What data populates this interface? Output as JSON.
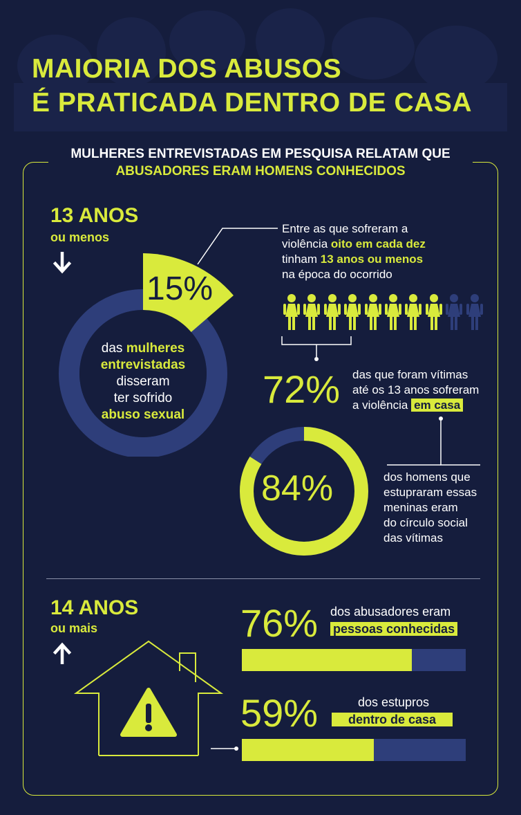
{
  "title": {
    "line1": "MAIORIA DOS ABUSOS",
    "line2": "É PRATICADA DENTRO DE CASA"
  },
  "subtitle": {
    "line1": "MULHERES ENTREVISTADAS EM PESQUISA RELATAM QUE",
    "line2": "ABUSADORES ERAM HOMENS CONHECIDOS"
  },
  "colors": {
    "background": "#151d3d",
    "accent": "#d9ea3c",
    "muted": "#2e3e7a",
    "text": "#ffffff"
  },
  "section_under_13": {
    "age_big": "13 ANOS",
    "age_small": "ou menos",
    "arrow_icon": "arrow-down-icon",
    "donut": {
      "value_label": "15%",
      "value": 15,
      "text_part1": "das",
      "text_bold1": "mulheres",
      "text_bold2": "entrevistadas",
      "text_line3": "disseram",
      "text_line4": "ter sofrido",
      "text_bold3": "abuso sexual"
    },
    "callout": {
      "line1": "Entre as que sofreram a",
      "line2_pre": "violência ",
      "line2_bold": "oito em cada dez",
      "line3_pre": "tinham ",
      "line3_bold": "13 anos ou menos",
      "line4": "na época do ocorrido"
    },
    "people_highlighted": 8,
    "people_total": 10,
    "stat72": {
      "value_label": "72%",
      "line1": "das que foram vítimas",
      "line2": "até os 13 anos sofreram",
      "line3_pre": "a violência ",
      "line3_hl": "em casa"
    },
    "stat84": {
      "value_label": "84%",
      "value": 84,
      "line1": "dos homens que",
      "line2": "estupraram essas",
      "line3": "meninas eram",
      "line4": "do círculo social",
      "line5": "das vítimas"
    }
  },
  "section_over_14": {
    "age_big": "14 ANOS",
    "age_small": "ou mais",
    "arrow_icon": "arrow-up-icon",
    "house_icon": "house-warning-icon",
    "stat76": {
      "value_label": "76%",
      "value": 76,
      "line1": "dos abusadores eram",
      "hl": "pessoas conhecidas"
    },
    "stat59": {
      "value_label": "59%",
      "value": 59,
      "line1": "dos estupros",
      "hl": "dentro de casa"
    }
  }
}
